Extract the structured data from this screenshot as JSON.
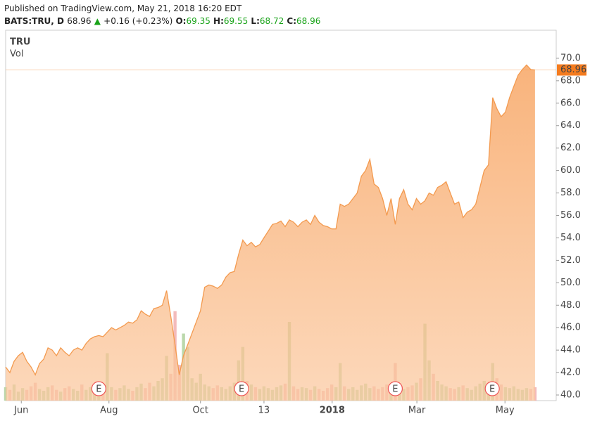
{
  "header": {
    "published": "Published on TradingView.com, May 21, 2018 16:20 EDT",
    "symbol": "BATS:TRU, D",
    "price": "68.96",
    "arrow": "▲",
    "change": "+0.16 (+0.23%)",
    "o_label": "O:",
    "o": "69.35",
    "h_label": "H:",
    "h": "69.55",
    "l_label": "L:",
    "l": "68.72",
    "c_label": "C:",
    "c": "68.96"
  },
  "chart_data": {
    "type": "area",
    "legend": [
      "TRU",
      "Vol"
    ],
    "color": "#f39a4f",
    "last_label": "68.96",
    "last_value": 68.96,
    "xlim": [
      0,
      130
    ],
    "ylim": [
      39.5,
      72.5
    ],
    "yticks": [
      {
        "value": 40,
        "label": "40.0"
      },
      {
        "value": 42,
        "label": "42.0"
      },
      {
        "value": 44,
        "label": "44.0"
      },
      {
        "value": 46,
        "label": "46.0"
      },
      {
        "value": 48,
        "label": "48.0"
      },
      {
        "value": 50,
        "label": "50.0"
      },
      {
        "value": 52,
        "label": "52.0"
      },
      {
        "value": 54,
        "label": "54.0"
      },
      {
        "value": 56,
        "label": "56.0"
      },
      {
        "value": 58,
        "label": "58.0"
      },
      {
        "value": 60,
        "label": "60.0"
      },
      {
        "value": 62,
        "label": "62.0"
      },
      {
        "value": 64,
        "label": "64.0"
      },
      {
        "value": 66,
        "label": "66.0"
      },
      {
        "value": 68,
        "label": "68.0"
      },
      {
        "value": 70,
        "label": "70.0"
      }
    ],
    "xticks": [
      {
        "value": 3.7,
        "label": "Jun"
      },
      {
        "value": 24.4,
        "label": "Aug"
      },
      {
        "value": 46,
        "label": "Oct"
      },
      {
        "value": 61,
        "label": "13"
      },
      {
        "value": 77.1,
        "label": "2018"
      },
      {
        "value": 97.1,
        "label": "Mar"
      },
      {
        "value": 117.9,
        "label": "May"
      }
    ],
    "values": [
      42.5,
      42.0,
      43.0,
      43.5,
      43.8,
      43.0,
      42.5,
      41.8,
      42.8,
      43.2,
      44.2,
      44.0,
      43.5,
      44.2,
      43.8,
      43.5,
      44.0,
      44.2,
      44.0,
      44.6,
      45.0,
      45.2,
      45.3,
      45.2,
      45.6,
      46.0,
      45.8,
      46.0,
      46.2,
      46.5,
      46.4,
      46.7,
      47.5,
      47.2,
      47.0,
      47.7,
      47.8,
      48.0,
      49.3,
      47.0,
      44.5,
      41.8,
      43.5,
      44.5,
      45.5,
      46.5,
      47.5,
      49.6,
      49.8,
      49.7,
      49.5,
      49.8,
      50.5,
      50.9,
      51.0,
      52.5,
      53.8,
      53.3,
      53.6,
      53.2,
      53.4,
      54.0,
      54.6,
      55.2,
      55.3,
      55.5,
      55.0,
      55.6,
      55.4,
      55.0,
      55.4,
      55.6,
      55.2,
      56.0,
      55.4,
      55.1,
      55.0,
      54.8,
      54.8,
      57.0,
      56.8,
      57.0,
      57.5,
      58.0,
      59.5,
      60.0,
      61.0,
      58.8,
      58.5,
      57.5,
      56.0,
      57.5,
      55.2,
      57.5,
      58.3,
      57.0,
      56.5,
      57.5,
      57.0,
      57.3,
      58.0,
      57.8,
      58.5,
      58.7,
      59.0,
      58.0,
      57.0,
      57.2,
      55.8,
      56.3,
      56.5,
      57.0,
      58.5,
      60.0,
      60.5,
      66.5,
      65.5,
      64.8,
      65.2,
      66.5,
      67.5,
      68.5,
      69.0,
      69.4,
      69.0,
      68.96
    ],
    "volume": [
      1.5,
      1.2,
      1.8,
      1.0,
      1.4,
      1.2,
      1.6,
      2.0,
      1.3,
      1.1,
      1.5,
      1.7,
      1.2,
      1.0,
      1.4,
      1.6,
      1.3,
      1.1,
      1.8,
      1.2,
      1.5,
      1.3,
      1.6,
      1.4,
      5.3,
      1.5,
      1.2,
      1.4,
      1.7,
      1.3,
      1.1,
      1.5,
      1.9,
      1.4,
      2.0,
      1.6,
      2.2,
      2.5,
      5.0,
      3.0,
      10.0,
      4.0,
      7.5,
      6.0,
      2.5,
      2.0,
      3.0,
      1.8,
      1.6,
      1.4,
      1.7,
      1.5,
      1.3,
      1.6,
      2.0,
      4.5,
      6.0,
      2.2,
      1.8,
      1.5,
      1.3,
      1.6,
      1.4,
      1.2,
      1.5,
      1.7,
      1.9,
      8.8,
      1.6,
      1.3,
      1.5,
      1.4,
      1.2,
      1.6,
      1.3,
      1.1,
      1.4,
      1.8,
      1.5,
      4.2,
      1.6,
      1.3,
      1.5,
      1.2,
      1.7,
      1.9,
      1.4,
      1.6,
      1.3,
      1.5,
      1.8,
      1.4,
      4.2,
      1.6,
      1.3,
      1.5,
      1.7,
      2.0,
      2.5,
      8.6,
      4.5,
      3.0,
      2.2,
      1.8,
      1.6,
      1.4,
      1.3,
      1.5,
      1.7,
      1.4,
      1.2,
      1.6,
      1.9,
      2.2,
      1.8,
      4.2,
      2.5,
      1.8,
      1.5,
      1.4,
      1.6,
      1.3,
      1.2,
      1.4,
      1.3,
      1.5
    ],
    "vlim": [
      0,
      11
    ],
    "vol_up_color": "#b4d4a3",
    "vol_down_color": "#f2b4b4",
    "events": [
      {
        "x": 22,
        "label": "E"
      },
      {
        "x": 55.7,
        "label": "E"
      },
      {
        "x": 92,
        "label": "E"
      },
      {
        "x": 114.9,
        "label": "E"
      }
    ]
  }
}
